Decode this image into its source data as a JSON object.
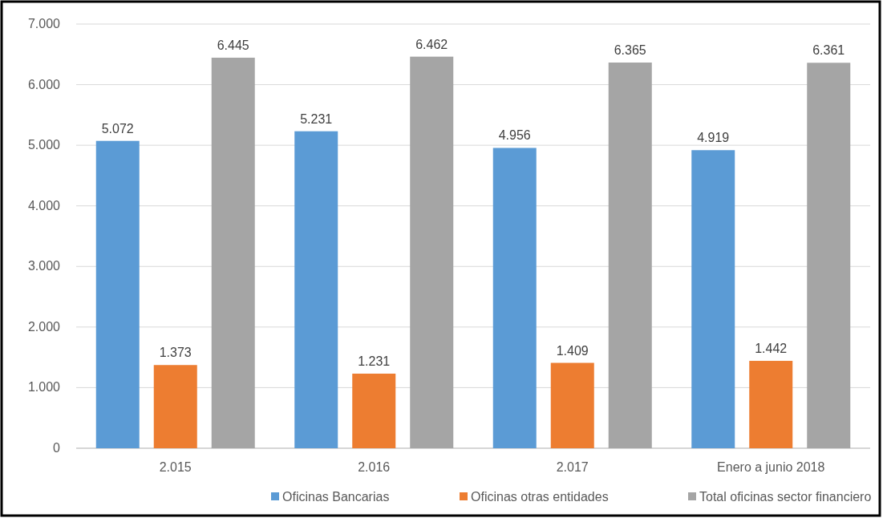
{
  "chart_data": {
    "type": "bar",
    "categories": [
      "2.015",
      "2.016",
      "2.017",
      "Enero a junio 2018"
    ],
    "series": [
      {
        "name": "Oficinas Bancarias",
        "color": "#5b9bd5",
        "values": [
          5072,
          5231,
          4956,
          4919
        ],
        "value_labels": [
          "5.072",
          "5.231",
          "4.956",
          "4.919"
        ]
      },
      {
        "name": "Oficinas otras entidades",
        "color": "#ed7d31",
        "values": [
          1373,
          1231,
          1409,
          1442
        ],
        "value_labels": [
          "1.373",
          "1.231",
          "1.409",
          "1.442"
        ]
      },
      {
        "name": "Total oficinas sector financiero",
        "color": "#a5a5a5",
        "values": [
          6445,
          6462,
          6365,
          6361
        ],
        "value_labels": [
          "6.445",
          "6.462",
          "6.365",
          "6.361"
        ]
      }
    ],
    "ylim": [
      0,
      7000
    ],
    "yticks": [
      0,
      {
        "value": 1000,
        "label": "1.000"
      },
      {
        "value": 2000,
        "label": "2.000"
      },
      {
        "value": 3000,
        "label": "3.000"
      },
      {
        "value": 4000,
        "label": "4.000"
      },
      {
        "value": 5000,
        "label": "5.000"
      },
      {
        "value": 6000,
        "label": "6.000"
      },
      {
        "value": 7000,
        "label": "7.000"
      }
    ],
    "grid": "y",
    "legend": "bottom"
  }
}
